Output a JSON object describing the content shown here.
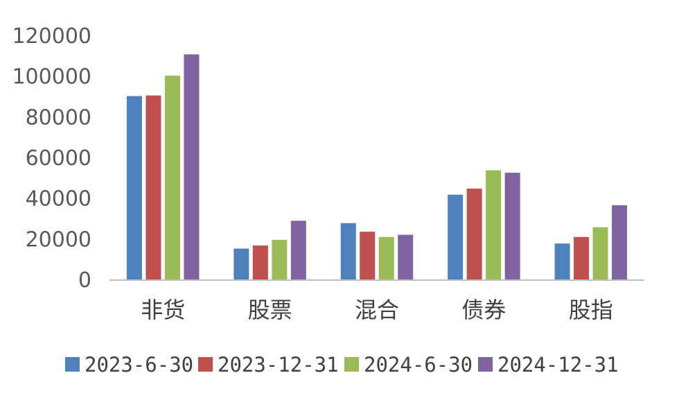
{
  "chart_data": {
    "type": "bar",
    "categories": [
      "非货",
      "股票",
      "混合",
      "债券",
      "股指"
    ],
    "series": [
      {
        "name": "2023-6-30",
        "color": "#4F81BD",
        "values": [
          90500,
          15500,
          28000,
          42000,
          18000
        ]
      },
      {
        "name": "2023-12-31",
        "color": "#C0504D",
        "values": [
          90800,
          17000,
          23800,
          45000,
          21200
        ]
      },
      {
        "name": "2024-6-30",
        "color": "#9BBB59",
        "values": [
          100500,
          19800,
          21200,
          54000,
          26000
        ]
      },
      {
        "name": "2024-12-31",
        "color": "#8064A2",
        "values": [
          111000,
          29200,
          22300,
          52800,
          36800
        ]
      }
    ],
    "ylim": [
      0,
      120000
    ],
    "yticks": [
      "0",
      "20000",
      "40000",
      "60000",
      "80000",
      "100000",
      "120000"
    ],
    "grid": false,
    "legend": "bottom",
    "title": "",
    "xlabel": "",
    "ylabel": ""
  }
}
